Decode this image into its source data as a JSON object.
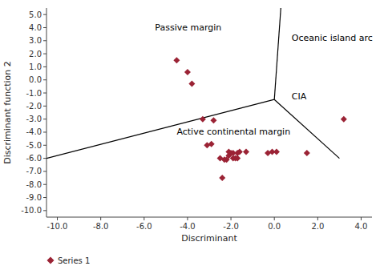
{
  "chart_data": {
    "type": "scatter",
    "x_label": "Discriminant",
    "y_label": "Discriminant function 2",
    "xlim": [
      -10.5,
      4.5
    ],
    "ylim": [
      -10.5,
      5.5
    ],
    "xticks": [
      {
        "value": -10.0,
        "label": "-10.0"
      },
      {
        "value": -8.0,
        "label": "-8.0"
      },
      {
        "value": -6.0,
        "label": "-6.0"
      },
      {
        "value": -4.0,
        "label": "-4.0"
      },
      {
        "value": -2.0,
        "label": "-2.0"
      },
      {
        "value": 0.0,
        "label": "0.0"
      },
      {
        "value": 2.0,
        "label": "2.0"
      },
      {
        "value": 4.0,
        "label": "4.0"
      }
    ],
    "yticks": [
      {
        "value": -10.0,
        "label": "-10.0"
      },
      {
        "value": -9.0,
        "label": "-9.0"
      },
      {
        "value": -8.0,
        "label": "-8.0"
      },
      {
        "value": -7.0,
        "label": "-7.0"
      },
      {
        "value": -6.0,
        "label": "-6.0"
      },
      {
        "value": -5.0,
        "label": "-5.0"
      },
      {
        "value": -4.0,
        "label": "-4.0"
      },
      {
        "value": -3.0,
        "label": "-3.0"
      },
      {
        "value": -2.0,
        "label": "-2.0"
      },
      {
        "value": -1.0,
        "label": "-1.0"
      },
      {
        "value": 0.0,
        "label": "0.0"
      },
      {
        "value": 1.0,
        "label": "1.0"
      },
      {
        "value": 2.0,
        "label": "2.0"
      },
      {
        "value": 3.0,
        "label": "3.0"
      },
      {
        "value": 4.0,
        "label": "4.0"
      },
      {
        "value": 5.0,
        "label": "5.0"
      }
    ],
    "grid": false,
    "legend": "bottom",
    "series": [
      {
        "name": "Series 1",
        "type": "scatter",
        "color": "#9b2335",
        "marker": "diamond",
        "x": [
          -4.5,
          -4.0,
          -3.8,
          -3.3,
          -3.1,
          -2.9,
          -2.8,
          -2.5,
          -2.4,
          -2.2,
          -2.1,
          -2.0,
          -1.9,
          -1.8,
          -1.7,
          -1.6,
          -1.3,
          -2.3,
          -2.1,
          -1.9,
          -1.7,
          -0.3,
          -0.1,
          0.1,
          1.5,
          3.2
        ],
        "values": [
          1.5,
          0.6,
          -0.3,
          -3.0,
          -5.0,
          -4.9,
          -3.1,
          -6.0,
          -7.5,
          -6.1,
          -5.8,
          -5.6,
          -6.0,
          -6.0,
          -6.0,
          -5.5,
          -5.5,
          -6.1,
          -5.5,
          -5.6,
          -5.6,
          -5.6,
          -5.5,
          -5.5,
          -5.6,
          -3.0
        ]
      },
      {
        "type": "line",
        "color": "#000000",
        "x": [
          -10.5,
          0.0
        ],
        "values": [
          -6.0,
          -1.5
        ]
      },
      {
        "type": "line",
        "color": "#000000",
        "x": [
          0.0,
          0.3
        ],
        "values": [
          -1.5,
          5.5
        ]
      },
      {
        "type": "line",
        "color": "#000000",
        "x": [
          0.0,
          3.0
        ],
        "values": [
          -1.5,
          -6.0
        ]
      }
    ],
    "annotations": [
      {
        "text": "Passive margin",
        "x": -5.5,
        "y": 4.0
      },
      {
        "text": "Oceanic island arc",
        "x": 0.8,
        "y": 3.2
      },
      {
        "text": "CIA",
        "x": 0.8,
        "y": -1.3
      },
      {
        "text": "Active continental margin",
        "x": -4.5,
        "y": -4.0
      }
    ]
  }
}
